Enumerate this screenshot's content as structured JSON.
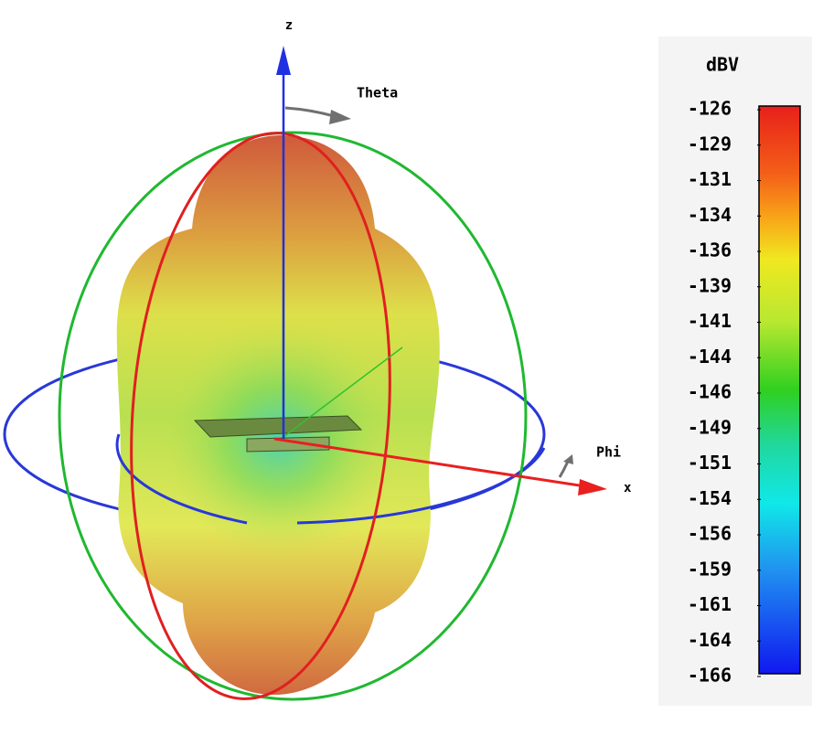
{
  "axes": {
    "z": "z",
    "theta": "Theta",
    "phi": "Phi",
    "x": "x"
  },
  "colorbar": {
    "unit": "dBV",
    "lim": [
      -126,
      -166
    ],
    "ticks": [
      {
        "value": -126,
        "label": "-126"
      },
      {
        "value": -128.5,
        "label": "-129"
      },
      {
        "value": -131,
        "label": "-131"
      },
      {
        "value": -133.5,
        "label": "-134"
      },
      {
        "value": -136,
        "label": "-136"
      },
      {
        "value": -138.5,
        "label": "-139"
      },
      {
        "value": -141,
        "label": "-141"
      },
      {
        "value": -143.5,
        "label": "-144"
      },
      {
        "value": -146,
        "label": "-146"
      },
      {
        "value": -148.5,
        "label": "-149"
      },
      {
        "value": -151,
        "label": "-151"
      },
      {
        "value": -153.5,
        "label": "-154"
      },
      {
        "value": -156,
        "label": "-156"
      },
      {
        "value": -158.5,
        "label": "-159"
      },
      {
        "value": -161,
        "label": "-161"
      },
      {
        "value": -163.5,
        "label": "-164"
      },
      {
        "value": -166,
        "label": "-166"
      }
    ]
  }
}
